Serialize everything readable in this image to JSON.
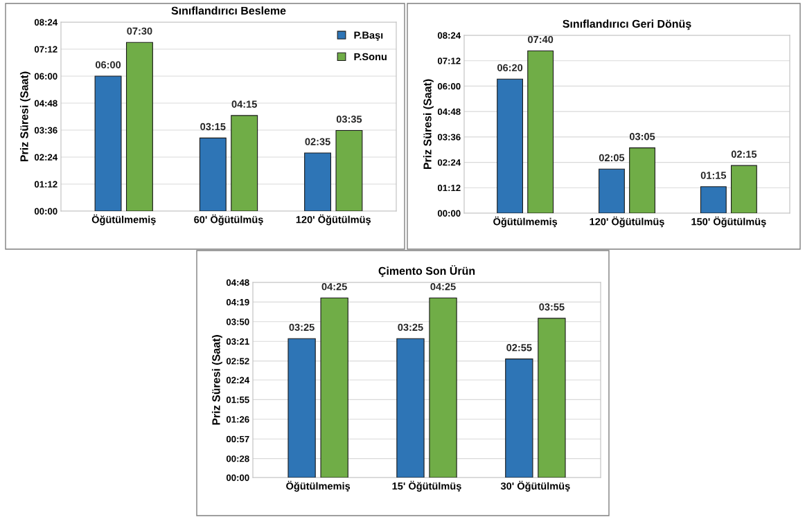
{
  "chart_data": [
    {
      "type": "bar",
      "title": "Sınıflandırıcı Besleme",
      "ylabel": "Priz Süresi (Saat)",
      "categories": [
        "Öğütülmemiş",
        "60' Öğütülmüş",
        "120' Öğütülmüş"
      ],
      "series": [
        {
          "name": "P.Başı",
          "color": "#2e75b6",
          "values": [
            6.0,
            3.25,
            2.5833
          ],
          "value_labels": [
            "06:00",
            "03:15",
            "02:35"
          ]
        },
        {
          "name": "P.Sonu",
          "color": "#70ad47",
          "values": [
            7.5,
            4.25,
            3.5833
          ],
          "value_labels": [
            "07:30",
            "04:15",
            "03:35"
          ]
        }
      ],
      "ylim": [
        0,
        8.4
      ],
      "yticks": [
        {
          "value": 0,
          "label": "00:00"
        },
        {
          "value": 1.2,
          "label": "01:12"
        },
        {
          "value": 2.4,
          "label": "02:24"
        },
        {
          "value": 3.6,
          "label": "03:36"
        },
        {
          "value": 4.8,
          "label": "04:48"
        },
        {
          "value": 6.0,
          "label": "06:00"
        },
        {
          "value": 7.2,
          "label": "07:12"
        },
        {
          "value": 8.4,
          "label": "08:24"
        }
      ],
      "grid": "y",
      "legend": "top right"
    },
    {
      "type": "bar",
      "title": "Sınıflandırıcı Geri Dönüş",
      "ylabel": "Priz Süresi (Saat)",
      "categories": [
        "Öğütülmemiş",
        "120' Öğütülmüş",
        "150' Öğütülmüş"
      ],
      "series": [
        {
          "color": "#2e75b6",
          "values": [
            6.3333,
            2.0833,
            1.25
          ],
          "value_labels": [
            "06:20",
            "02:05",
            "01:15"
          ]
        },
        {
          "color": "#70ad47",
          "values": [
            7.6667,
            3.0833,
            2.25
          ],
          "value_labels": [
            "07:40",
            "03:05",
            "02:15"
          ]
        }
      ],
      "ylim": [
        0,
        8.4
      ],
      "yticks": [
        {
          "value": 0,
          "label": "00:00"
        },
        {
          "value": 1.2,
          "label": "01:12"
        },
        {
          "value": 2.4,
          "label": "02:24"
        },
        {
          "value": 3.6,
          "label": "03:36"
        },
        {
          "value": 4.8,
          "label": "04:48"
        },
        {
          "value": 6.0,
          "label": "06:00"
        },
        {
          "value": 7.2,
          "label": "07:12"
        },
        {
          "value": 8.4,
          "label": "08:24"
        }
      ],
      "grid": "y"
    },
    {
      "type": "bar",
      "title": "Çimento Son Ürün",
      "ylabel": "Priz Süresi (Saat)",
      "categories": [
        "Öğütülmemiş",
        "15' Öğütülmüş",
        "30' Öğütülmüş"
      ],
      "series": [
        {
          "color": "#2e75b6",
          "values": [
            3.4167,
            3.4167,
            2.9167
          ],
          "value_labels": [
            "03:25",
            "03:25",
            "02:55"
          ]
        },
        {
          "color": "#70ad47",
          "values": [
            4.4167,
            4.4167,
            3.9167
          ],
          "value_labels": [
            "04:25",
            "04:25",
            "03:55"
          ]
        }
      ],
      "ylim": [
        0,
        4.8
      ],
      "yticks": [
        {
          "value": 0,
          "label": "00:00"
        },
        {
          "value": 0.46667,
          "label": "00:28"
        },
        {
          "value": 0.95,
          "label": "00:57"
        },
        {
          "value": 1.43333,
          "label": "01:26"
        },
        {
          "value": 1.91667,
          "label": "01:55"
        },
        {
          "value": 2.4,
          "label": "02:24"
        },
        {
          "value": 2.86667,
          "label": "02:52"
        },
        {
          "value": 3.35,
          "label": "03:21"
        },
        {
          "value": 3.83333,
          "label": "03:50"
        },
        {
          "value": 4.31667,
          "label": "04:19"
        },
        {
          "value": 4.8,
          "label": "04:48"
        }
      ],
      "grid": "y"
    }
  ]
}
